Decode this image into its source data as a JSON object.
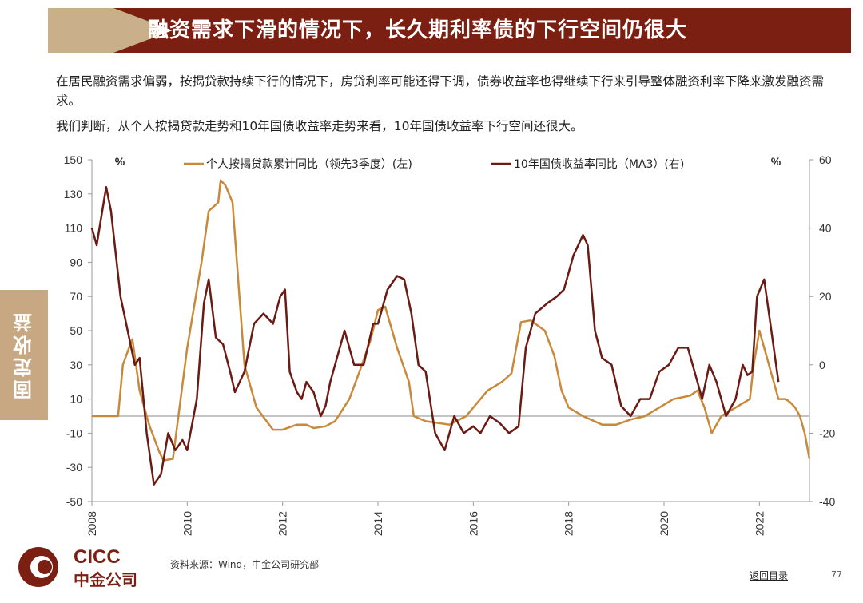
{
  "header": {
    "title": "融资需求下滑的情况下，长久期利率债的下行空间仍很大"
  },
  "body": {
    "para1": "在居民融资需求偏弱，按揭贷款持续下行的情况下，房贷利率可能还得下调，债券收益率也得继续下行来引导整体融资利率下降来激发融资需求。",
    "para2": "我们判断，从个人按揭贷款走势和10年国债收益率走势来看，10年国债收益率下行空间还很大。"
  },
  "side_tab": {
    "label": "固定收益"
  },
  "footer": {
    "logo_en": "CICC",
    "logo_cn": "中金公司",
    "source": "资料来源：Wind，中金公司研究部",
    "back_link": "返回目录",
    "page": "77"
  },
  "colors": {
    "title_red": "#7b1f12",
    "title_tan": "#c9b08a",
    "mortgage": "#c8893a",
    "bond": "#6b1a14"
  },
  "chart_data": {
    "type": "line",
    "left_axis": {
      "unit": "%",
      "ylim": [
        -50,
        150
      ],
      "ticks": [
        "150",
        "130",
        "110",
        "90",
        "70",
        "50",
        "30",
        "10",
        "-10",
        "-30",
        "-50"
      ]
    },
    "right_axis": {
      "unit": "%",
      "ylim": [
        -40,
        60
      ],
      "ticks": [
        "60",
        "40",
        "20",
        "0",
        "-20",
        "-40"
      ]
    },
    "x_axis": {
      "range": [
        2008,
        2023.05
      ],
      "ticks": [
        "2008",
        "2010",
        "2012",
        "2014",
        "2016",
        "2018",
        "2020",
        "2022"
      ]
    },
    "grid": false,
    "legend_placement": "top",
    "series": [
      {
        "name": "个人按揭贷款累计同比（领先3季度）(左)",
        "axis": "left",
        "color": "#c8893a",
        "x": [
          2008.0,
          2008.5,
          2008.55,
          2008.65,
          2008.78,
          2008.85,
          2009.0,
          2009.2,
          2009.4,
          2009.5,
          2009.7,
          2010.0,
          2010.3,
          2010.45,
          2010.65,
          2010.7,
          2010.8,
          2010.95,
          2011.2,
          2011.45,
          2011.8,
          2012.0,
          2012.3,
          2012.5,
          2012.65,
          2012.9,
          2013.1,
          2013.4,
          2013.6,
          2013.85,
          2014.0,
          2014.15,
          2014.4,
          2014.65,
          2014.75,
          2015.0,
          2015.5,
          2015.85,
          2016.3,
          2016.6,
          2016.8,
          2017.0,
          2017.2,
          2017.5,
          2017.7,
          2017.85,
          2018.0,
          2018.3,
          2018.7,
          2019.0,
          2019.3,
          2019.6,
          2019.9,
          2020.2,
          2020.55,
          2020.7,
          2020.85,
          2021.0,
          2021.2,
          2021.5,
          2021.8,
          2021.88,
          2022.0,
          2022.2,
          2022.4,
          2022.55,
          2022.65,
          2022.75,
          2022.85,
          2022.95,
          2023.05
        ],
        "y": [
          0,
          0,
          0,
          30,
          40,
          45,
          15,
          -5,
          -20,
          -26,
          -25,
          40,
          90,
          120,
          125,
          138,
          135,
          125,
          30,
          5,
          -8,
          -8,
          -5,
          -5,
          -7,
          -6,
          -3,
          10,
          25,
          45,
          62,
          64,
          40,
          20,
          0,
          -3,
          -5,
          0,
          15,
          20,
          25,
          55,
          56,
          50,
          35,
          15,
          5,
          0,
          -5,
          -5,
          -2,
          0,
          5,
          10,
          12,
          15,
          5,
          -10,
          0,
          5,
          10,
          30,
          50,
          30,
          10,
          10,
          8,
          5,
          0,
          -10,
          -25
        ]
      },
      {
        "name": "10年国债收益率同比（MA3）(右)",
        "axis": "right",
        "color": "#6b1a14",
        "x": [
          2008.0,
          2008.1,
          2008.3,
          2008.4,
          2008.6,
          2008.9,
          2009.0,
          2009.15,
          2009.3,
          2009.45,
          2009.6,
          2009.75,
          2009.9,
          2010.0,
          2010.2,
          2010.35,
          2010.45,
          2010.6,
          2010.75,
          2010.9,
          2011.0,
          2011.2,
          2011.4,
          2011.6,
          2011.8,
          2011.95,
          2012.05,
          2012.15,
          2012.3,
          2012.4,
          2012.5,
          2012.65,
          2012.8,
          2012.9,
          2013.0,
          2013.1,
          2013.3,
          2013.5,
          2013.7,
          2013.9,
          2014.0,
          2014.2,
          2014.4,
          2014.55,
          2014.7,
          2014.85,
          2015.0,
          2015.2,
          2015.4,
          2015.6,
          2015.8,
          2016.0,
          2016.15,
          2016.35,
          2016.55,
          2016.75,
          2016.95,
          2017.1,
          2017.3,
          2017.55,
          2017.75,
          2017.9,
          2018.1,
          2018.3,
          2018.4,
          2018.55,
          2018.7,
          2018.9,
          2019.1,
          2019.3,
          2019.5,
          2019.7,
          2019.9,
          2020.1,
          2020.3,
          2020.5,
          2020.7,
          2020.8,
          2020.95,
          2021.1,
          2021.3,
          2021.5,
          2021.65,
          2021.75,
          2021.85,
          2021.95,
          2022.1,
          2022.25,
          2022.4
        ],
        "y": [
          40,
          35,
          52,
          45,
          20,
          0,
          2,
          -20,
          -35,
          -32,
          -20,
          -25,
          -22,
          -25,
          -10,
          18,
          25,
          8,
          6,
          -2,
          -8,
          -2,
          12,
          15,
          12,
          20,
          22,
          -2,
          -8,
          -10,
          -5,
          -8,
          -15,
          -12,
          -5,
          0,
          10,
          0,
          0,
          12,
          12,
          22,
          26,
          25,
          15,
          0,
          -2,
          -20,
          -25,
          -15,
          -20,
          -18,
          -20,
          -15,
          -17,
          -20,
          -18,
          5,
          15,
          18,
          20,
          22,
          32,
          38,
          35,
          10,
          2,
          0,
          -12,
          -15,
          -10,
          -10,
          -2,
          0,
          5,
          5,
          -5,
          -10,
          0,
          -5,
          -15,
          -10,
          0,
          -3,
          -2,
          20,
          25,
          10,
          -5
        ]
      }
    ]
  }
}
